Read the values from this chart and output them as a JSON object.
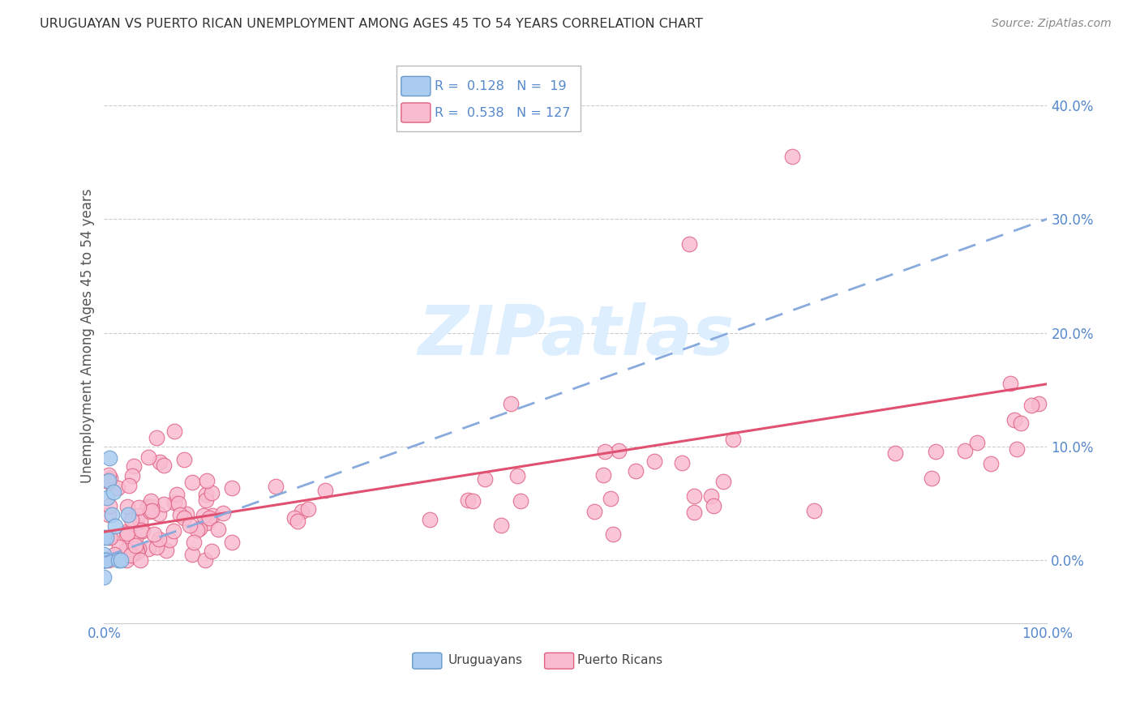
{
  "title": "URUGUAYAN VS PUERTO RICAN UNEMPLOYMENT AMONG AGES 45 TO 54 YEARS CORRELATION CHART",
  "source": "Source: ZipAtlas.com",
  "ylabel": "Unemployment Among Ages 45 to 54 years",
  "uruguayan_R": 0.128,
  "uruguayan_N": 19,
  "puertoRican_R": 0.538,
  "puertoRican_N": 127,
  "xlim": [
    0.0,
    1.0
  ],
  "ylim": [
    -0.055,
    0.45
  ],
  "yticks": [
    0.0,
    0.1,
    0.2,
    0.3,
    0.4
  ],
  "ytick_labels": [
    "0.0%",
    "10.0%",
    "20.0%",
    "30.0%",
    "40.0%"
  ],
  "xticks": [
    0.0,
    1.0
  ],
  "xtick_labels": [
    "0.0%",
    "100.0%"
  ],
  "uruguayan_face_color": "#aaccf0",
  "uruguayan_edge_color": "#6699cc",
  "puertoRican_face_color": "#f8bbd0",
  "puertoRican_edge_color": "#e06080",
  "uruguayan_line_color": "#88aadd",
  "puertoRican_line_color": "#e05070",
  "background_color": "#ffffff",
  "grid_color": "#cccccc",
  "watermark_color": "#ddeeff",
  "tick_label_color": "#5588cc",
  "title_color": "#333333",
  "source_color": "#888888",
  "legend_color": "#5588cc"
}
